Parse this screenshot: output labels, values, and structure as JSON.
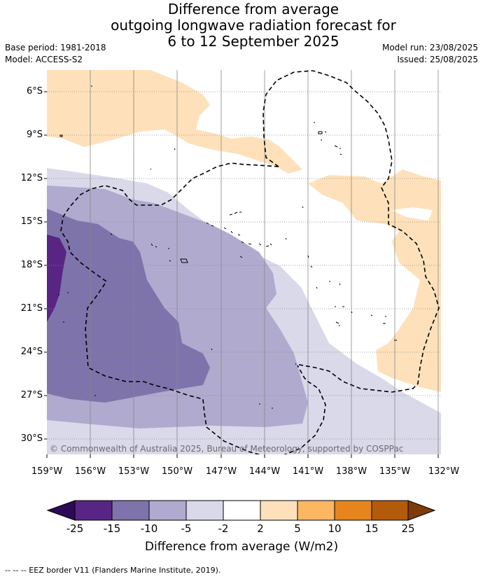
{
  "title": {
    "line1": "Difference from average",
    "line2": "outgoing longwave radiation forecast for",
    "line3": "6 to 12 September 2025"
  },
  "meta": {
    "base_period": "Base period: 1981-2018",
    "model": "Model: ACCESS-S2",
    "model_run": "Model run: 23/08/2025",
    "issued": "Issued: 25/08/2025"
  },
  "map": {
    "lat_labels": [
      "6°S",
      "9°S",
      "12°S",
      "15°S",
      "18°S",
      "21°S",
      "24°S",
      "27°S",
      "30°S"
    ],
    "lon_labels": [
      "159°W",
      "156°W",
      "153°W",
      "150°W",
      "147°W",
      "144°W",
      "141°W",
      "138°W",
      "135°W",
      "132°W"
    ],
    "copyright": "© Commonwealth of Australia 2025, Bureau of Meteorology, supported by COSPPac",
    "colors": {
      "land_outline": "#000000",
      "grid": "#888888",
      "eez": "#000000"
    }
  },
  "colorbar": {
    "labels": [
      "-25",
      "-15",
      "-10",
      "-5",
      "-2",
      "2",
      "5",
      "10",
      "15",
      "25"
    ],
    "colors": [
      "#2d0a55",
      "#582584",
      "#7f73ac",
      "#b0aacf",
      "#d9d9ea",
      "#ffffff",
      "#fee1ba",
      "#fdb662",
      "#e6841d",
      "#b45a0b",
      "#7f3b08"
    ],
    "title": "Difference from average (W/m2)"
  },
  "footnote": "-- -- -- EEZ border V11 (Flanders Marine Institute, 2019)."
}
